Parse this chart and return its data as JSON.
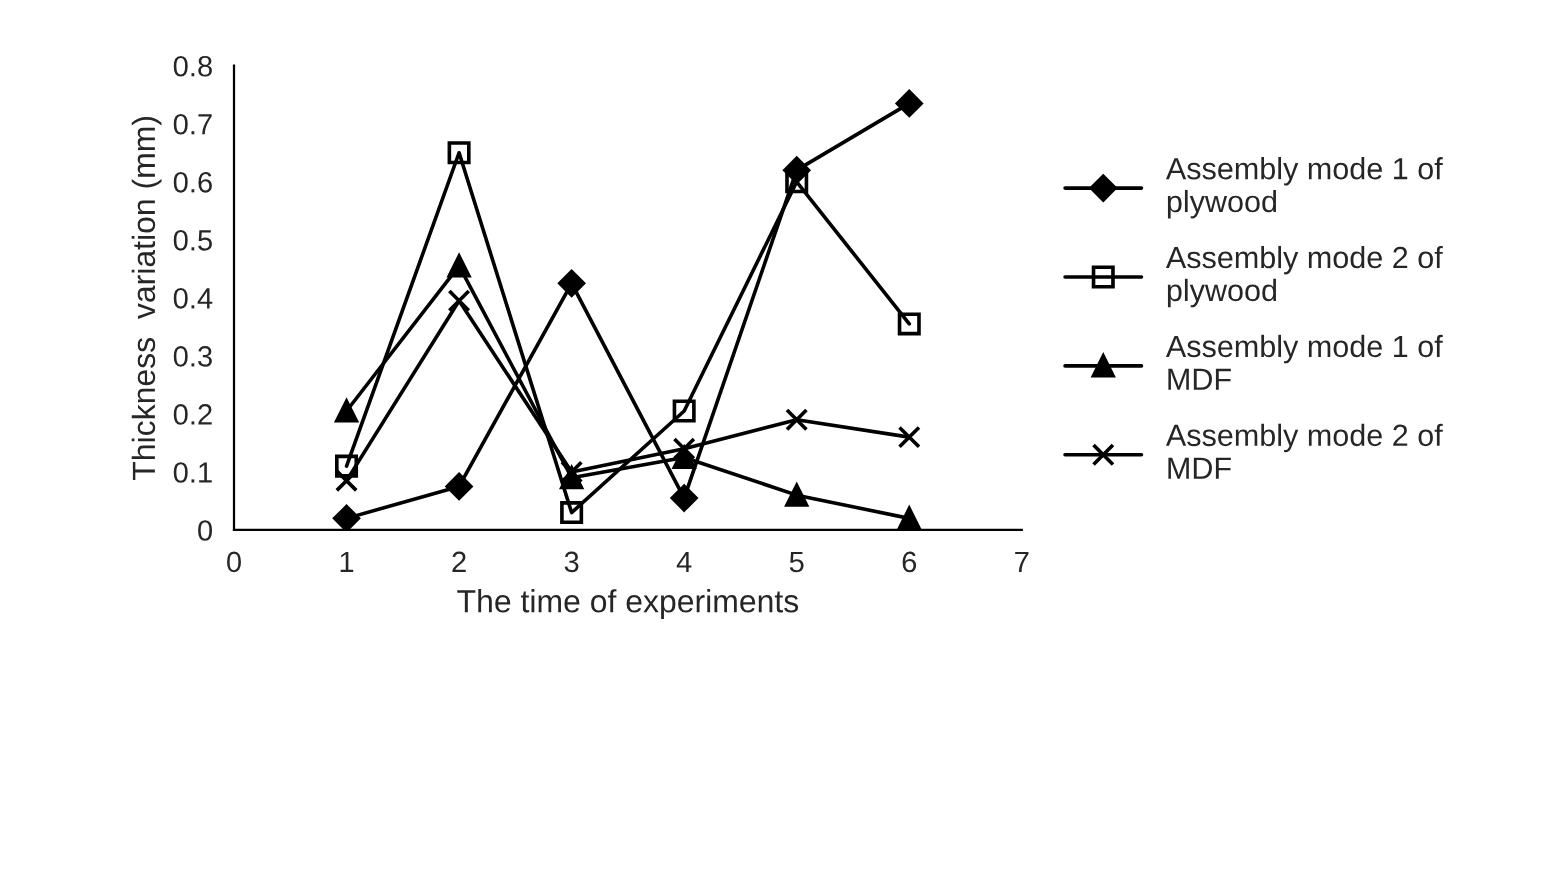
{
  "chart_data": {
    "type": "line",
    "xlabel": "The time of experiments",
    "ylabel": "Thickness  variation (mm)",
    "x": [
      1,
      2,
      3,
      4,
      5,
      6
    ],
    "series": [
      {
        "name": "Assembly mode 1 of plywood",
        "color": "#000000",
        "marker": "diamond",
        "values": [
          0.02,
          0.075,
          0.425,
          0.055,
          0.62,
          0.735
        ]
      },
      {
        "name": "Assembly mode 2 of plywood",
        "color": "#000000",
        "marker": "square",
        "values": [
          0.11,
          0.65,
          0.03,
          0.205,
          0.6,
          0.355
        ]
      },
      {
        "name": "Assembly mode 1 of MDF",
        "color": "#000000",
        "marker": "triangle",
        "values": [
          0.205,
          0.455,
          0.09,
          0.125,
          0.06,
          0.02
        ]
      },
      {
        "name": "Assembly mode 2 of MDF",
        "color": "#000000",
        "marker": "cross",
        "values": [
          0.085,
          0.395,
          0.1,
          0.14,
          0.19,
          0.16
        ]
      }
    ],
    "xlim": [
      0,
      7
    ],
    "xticks": [
      0,
      1,
      2,
      3,
      4,
      5,
      6,
      7
    ],
    "ylim": [
      0,
      0.8
    ],
    "yticks": [
      {
        "value": 0,
        "label": "0"
      },
      0.1,
      0.2,
      0.3,
      0.4,
      0.5,
      0.6,
      0.7,
      0.8
    ],
    "grid": false,
    "legend": "right",
    "line_style": "solid"
  }
}
